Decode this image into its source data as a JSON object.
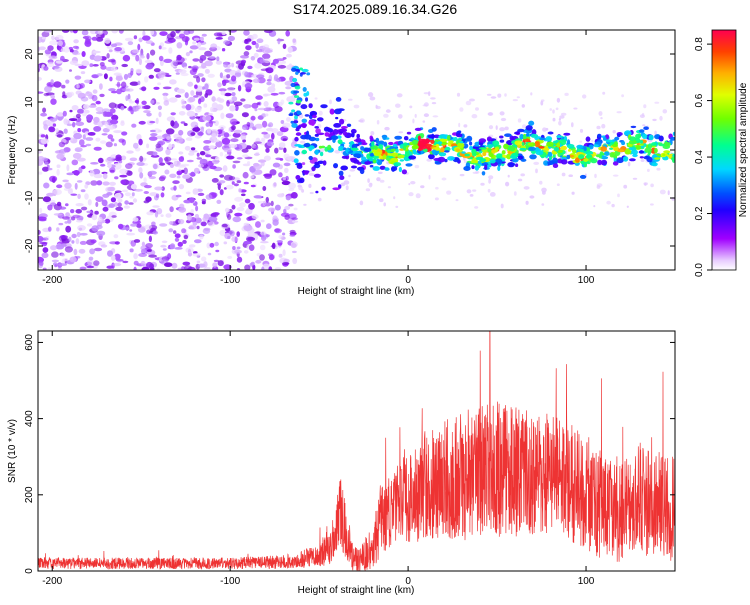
{
  "title": "S174.2025.089.16.34.G26",
  "colors": {
    "snr_line": "#ee3333",
    "axis": "#000000",
    "colormap": [
      "#ffffff",
      "#a000ff",
      "#3000ff",
      "#0060ff",
      "#00d0ff",
      "#00ff80",
      "#a0ff00",
      "#ffd000",
      "#ff6000",
      "#ff0040"
    ]
  },
  "chart_data": [
    {
      "type": "heatmap",
      "xlabel": "Height of straight line (km)",
      "ylabel": "Frequency (Hz)",
      "xlim": [
        -208,
        150
      ],
      "ylim": [
        -25,
        25
      ],
      "xticks": [
        -200,
        -100,
        0,
        100
      ],
      "yticks": [
        -20,
        -10,
        0,
        10,
        20
      ],
      "xtick_labels": [
        "-200",
        "-100",
        "0",
        "100"
      ],
      "ytick_labels": [
        "-20",
        "-10",
        "0",
        "10",
        "20"
      ],
      "colorbar": {
        "label": "Normalized spectral amplitude",
        "range": [
          0,
          0.85
        ],
        "ticks": [
          0.0,
          0.2,
          0.4,
          0.6,
          0.8
        ],
        "tick_labels": [
          "0.0",
          "0.2",
          "0.4",
          "0.6",
          "0.8"
        ]
      },
      "regions": [
        {
          "name": "noise",
          "x_range": [
            -208,
            -63
          ],
          "freq_range": [
            -25,
            25
          ],
          "amplitude": 0.05
        },
        {
          "name": "signal-track",
          "x_range": [
            -63,
            150
          ],
          "center_freq_hz": 0,
          "half_width_hz": 3,
          "peak_amplitude": 0.85,
          "peak_x": 10
        }
      ]
    },
    {
      "type": "line",
      "xlabel": "Height of straight line (km)",
      "ylabel": "SNR (10 * v/v)",
      "xlim": [
        -208,
        150
      ],
      "ylim": [
        0,
        630
      ],
      "xticks": [
        -200,
        -100,
        0,
        100
      ],
      "yticks": [
        0,
        200,
        400,
        600
      ],
      "xtick_labels": [
        "-200",
        "-100",
        "0",
        "100"
      ],
      "ytick_labels": [
        "0",
        "200",
        "400",
        "600"
      ],
      "series": [
        {
          "name": "SNR",
          "envelope_x": [
            -208,
            -150,
            -100,
            -65,
            -50,
            -42,
            -38,
            -32,
            -28,
            -20,
            -15,
            -5,
            0,
            10,
            20,
            30,
            40,
            50,
            60,
            70,
            80,
            90,
            100,
            110,
            120,
            130,
            140,
            150
          ],
          "envelope_mean": [
            20,
            20,
            20,
            25,
            40,
            80,
            160,
            40,
            25,
            60,
            130,
            180,
            190,
            220,
            240,
            250,
            260,
            265,
            260,
            250,
            255,
            240,
            200,
            170,
            160,
            190,
            170,
            160
          ],
          "envelope_spread": [
            15,
            15,
            15,
            20,
            30,
            60,
            100,
            40,
            30,
            60,
            90,
            110,
            120,
            140,
            160,
            170,
            180,
            180,
            170,
            170,
            170,
            160,
            150,
            140,
            140,
            150,
            150,
            140
          ],
          "peak_max": 630,
          "peak_at_x": 46
        }
      ]
    }
  ]
}
